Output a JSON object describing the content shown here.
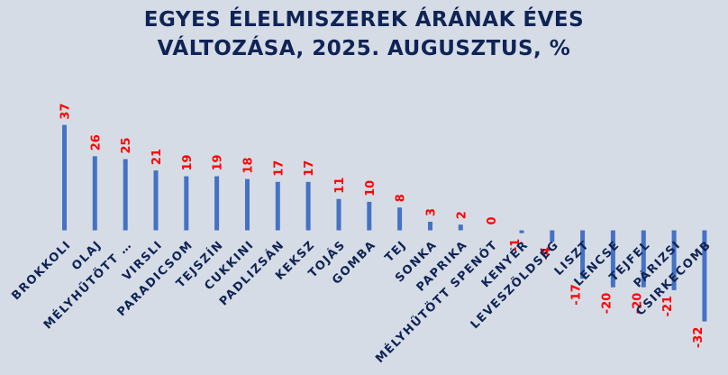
{
  "chart_data": {
    "type": "bar",
    "title_line1": "EGYES ÉLELMISZEREK ÁRÁNAK ÉVES",
    "title_line2": "VÁLTOZÁSA, 2025. AUGUSZTUS, %",
    "categories": [
      "BROKKOLI",
      "OLAJ",
      "MÉLYHŰTÖTT …",
      "VIRSLI",
      "PARADICSOM",
      "TEJSZÍN",
      "CUKKINI",
      "PADLIZSÁN",
      "KEKSZ",
      "TOJÁS",
      "GOMBA",
      "TEJ",
      "SONKA",
      "PAPRIKA",
      "MÉLYHŰTÖTT SPENÓT",
      "KENYÉR",
      "LEVESZÖLDSÉG",
      "LISZT",
      "LENCSE",
      "TEJFEL",
      "PÁRIZSI",
      "CSIRKECOMB"
    ],
    "values": [
      37,
      26,
      25,
      21,
      19,
      19,
      18,
      17,
      17,
      11,
      10,
      8,
      3,
      2,
      0,
      -1,
      -4,
      -17,
      -20,
      -20,
      -21,
      -32
    ],
    "data_labels": [
      "37",
      "26",
      "25",
      "21",
      "19",
      "19",
      "18",
      "17",
      "17",
      "11",
      "10",
      "8",
      "3",
      "2",
      "0",
      "-1",
      "-4",
      "-17",
      "-20",
      "-20",
      "-21",
      "-32"
    ],
    "bar_color": "#4472c4",
    "label_color": "#ff0000",
    "category_color": "#0f2456",
    "grid": false,
    "legend": "none"
  }
}
